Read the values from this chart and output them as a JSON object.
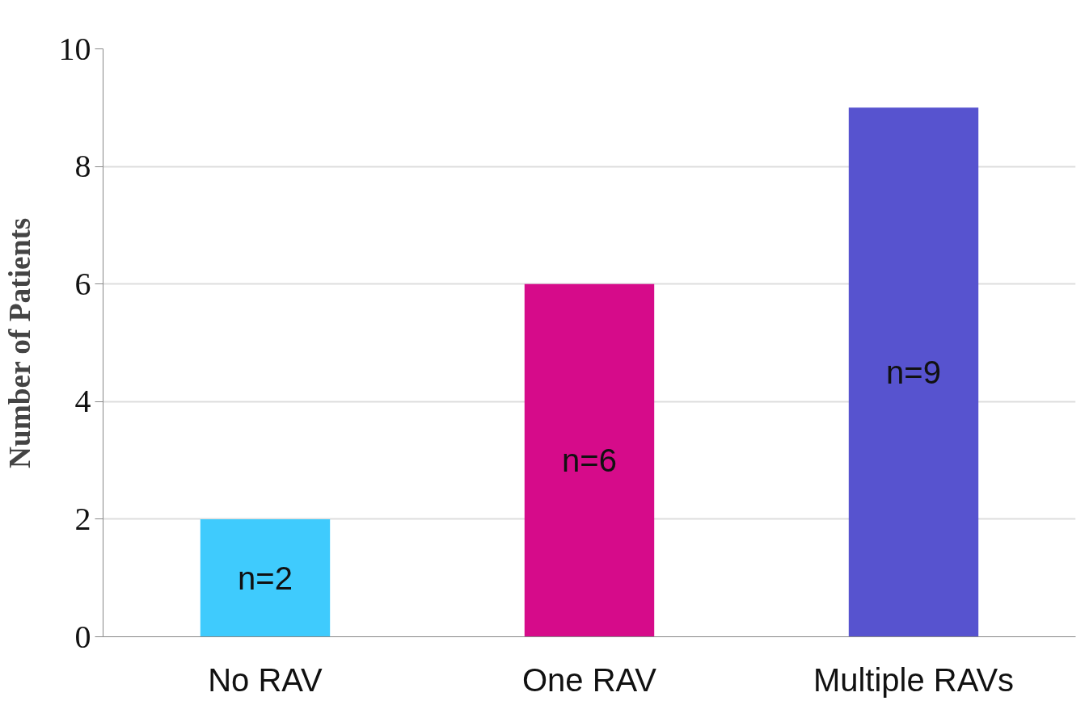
{
  "chart_data": {
    "type": "bar",
    "ylabel": "Number of Patients",
    "categories": [
      "No RAV",
      "One RAV",
      "Multiple RAVs"
    ],
    "values": [
      2,
      6,
      9
    ],
    "colors": [
      "#3fcbfd",
      "#d60b8a",
      "#5753cf"
    ],
    "value_labels": [
      "n=2",
      "n=6",
      "n=9"
    ],
    "ylim": [
      0,
      10
    ],
    "yticks": [
      0,
      2,
      4,
      6,
      8,
      10
    ],
    "grid": "y"
  }
}
